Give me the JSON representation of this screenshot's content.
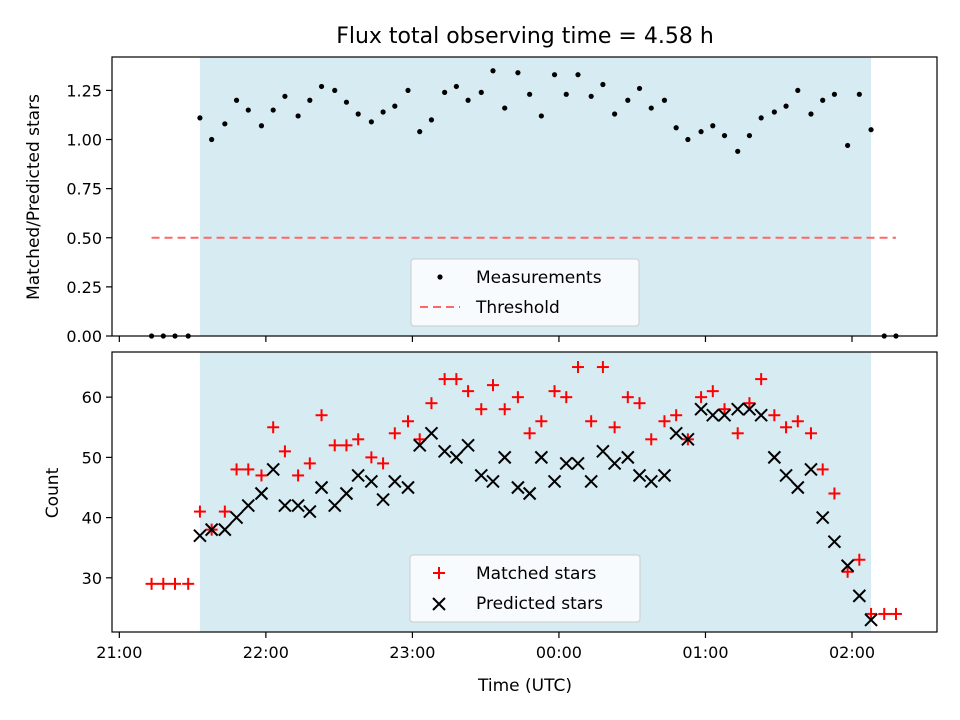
{
  "chart_data": [
    {
      "type": "scatter",
      "title": "Flux total observing time = 4.58 h",
      "xlabel": "",
      "ylabel": "Matched/Predicted stars",
      "ylim": [
        0,
        1.42
      ],
      "yticks": [
        "0.00",
        "0.25",
        "0.50",
        "0.75",
        "1.00",
        "1.25"
      ],
      "ytick_values": [
        0,
        0.25,
        0.5,
        0.75,
        1.0,
        1.25
      ],
      "x_unit": "hours since 21:00 UTC",
      "xlim": [
        -0.05,
        5.58
      ],
      "shaded_span": [
        0.55,
        5.13
      ],
      "shade_color": "#add8e6",
      "legend_position": "lower-center",
      "series": [
        {
          "name": "Measurements",
          "marker": "dot",
          "color": "#000000",
          "x": [
            0.22,
            0.3,
            0.38,
            0.47,
            0.55,
            0.63,
            0.72,
            0.8,
            0.88,
            0.97,
            1.05,
            1.13,
            1.22,
            1.3,
            1.38,
            1.47,
            1.55,
            1.63,
            1.72,
            1.8,
            1.88,
            1.97,
            2.05,
            2.13,
            2.22,
            2.3,
            2.38,
            2.47,
            2.55,
            2.63,
            2.72,
            2.8,
            2.88,
            2.97,
            3.05,
            3.13,
            3.22,
            3.3,
            3.38,
            3.47,
            3.55,
            3.63,
            3.72,
            3.8,
            3.88,
            3.97,
            4.05,
            4.13,
            4.22,
            4.3,
            4.38,
            4.47,
            4.55,
            4.63,
            4.72,
            4.8,
            4.88,
            4.97,
            5.05,
            5.13,
            5.22,
            5.3
          ],
          "y": [
            0,
            0,
            0,
            0,
            1.11,
            1.0,
            1.08,
            1.2,
            1.15,
            1.07,
            1.15,
            1.22,
            1.12,
            1.2,
            1.27,
            1.25,
            1.19,
            1.13,
            1.09,
            1.14,
            1.17,
            1.25,
            1.04,
            1.1,
            1.24,
            1.27,
            1.2,
            1.24,
            1.35,
            1.16,
            1.34,
            1.23,
            1.12,
            1.33,
            1.23,
            1.33,
            1.22,
            1.28,
            1.13,
            1.2,
            1.26,
            1.16,
            1.2,
            1.06,
            1.0,
            1.04,
            1.07,
            1.02,
            0.94,
            1.02,
            1.11,
            1.14,
            1.17,
            1.25,
            1.13,
            1.2,
            1.23,
            0.97,
            1.23,
            1.05,
            0,
            0
          ]
        },
        {
          "name": "Threshold",
          "marker": "dashed-line",
          "color": "#ff6666",
          "x": [
            0.22,
            5.3
          ],
          "y": [
            0.5,
            0.5
          ]
        }
      ]
    },
    {
      "type": "scatter",
      "title": "",
      "xlabel": "Time (UTC)",
      "ylabel": "Count",
      "ylim": [
        21,
        67.5
      ],
      "yticks": [
        "30",
        "40",
        "50",
        "60"
      ],
      "ytick_values": [
        30,
        40,
        50,
        60
      ],
      "x_unit": "hours since 21:00 UTC",
      "xlim": [
        -0.05,
        5.58
      ],
      "xticks": [
        "21:00",
        "22:00",
        "23:00",
        "00:00",
        "01:00",
        "02:00"
      ],
      "xtick_values": [
        0,
        1,
        2,
        3,
        4,
        5
      ],
      "shaded_span": [
        0.55,
        5.13
      ],
      "shade_color": "#add8e6",
      "legend_position": "lower-center",
      "series": [
        {
          "name": "Matched stars",
          "marker": "plus",
          "color": "#ff0000",
          "x": [
            0.22,
            0.3,
            0.38,
            0.47,
            0.55,
            0.63,
            0.72,
            0.8,
            0.88,
            0.97,
            1.05,
            1.13,
            1.22,
            1.3,
            1.38,
            1.47,
            1.55,
            1.63,
            1.72,
            1.8,
            1.88,
            1.97,
            2.05,
            2.13,
            2.22,
            2.3,
            2.38,
            2.47,
            2.55,
            2.63,
            2.72,
            2.8,
            2.88,
            2.97,
            3.05,
            3.13,
            3.22,
            3.3,
            3.38,
            3.47,
            3.55,
            3.63,
            3.72,
            3.8,
            3.88,
            3.97,
            4.05,
            4.13,
            4.22,
            4.3,
            4.38,
            4.47,
            4.55,
            4.63,
            4.72,
            4.8,
            4.88,
            4.97,
            5.05,
            5.13,
            5.22,
            5.3
          ],
          "y": [
            29,
            29,
            29,
            29,
            41,
            38,
            41,
            48,
            48,
            47,
            55,
            51,
            47,
            49,
            57,
            52,
            52,
            53,
            50,
            49,
            54,
            56,
            53,
            59,
            63,
            63,
            61,
            58,
            62,
            58,
            60,
            54,
            56,
            61,
            60,
            65,
            56,
            65,
            55,
            60,
            59,
            53,
            56,
            57,
            53,
            60,
            61,
            58,
            54,
            59,
            63,
            57,
            55,
            56,
            54,
            48,
            44,
            31,
            33,
            24,
            24,
            24
          ],
          "note_ignore": ""
        },
        {
          "name": "Predicted stars",
          "marker": "x",
          "color": "#000000",
          "x": [
            0.55,
            0.63,
            0.72,
            0.8,
            0.88,
            0.97,
            1.05,
            1.13,
            1.22,
            1.3,
            1.38,
            1.47,
            1.55,
            1.63,
            1.72,
            1.8,
            1.88,
            1.97,
            2.05,
            2.13,
            2.22,
            2.3,
            2.38,
            2.47,
            2.55,
            2.63,
            2.72,
            2.8,
            2.88,
            2.97,
            3.05,
            3.13,
            3.22,
            3.3,
            3.38,
            3.47,
            3.55,
            3.63,
            3.72,
            3.8,
            3.88,
            3.97,
            4.05,
            4.13,
            4.22,
            4.3,
            4.38,
            4.47,
            4.55,
            4.63,
            4.72,
            4.8,
            4.88,
            4.97,
            5.05,
            5.13
          ],
          "y": [
            37,
            38,
            38,
            40,
            42,
            44,
            48,
            42,
            42,
            41,
            45,
            42,
            44,
            47,
            46,
            43,
            46,
            45,
            52,
            54,
            51,
            50,
            52,
            47,
            46,
            50,
            45,
            44,
            50,
            46,
            49,
            49,
            46,
            51,
            49,
            50,
            47,
            46,
            47,
            54,
            53,
            58,
            57,
            57,
            58,
            58,
            57,
            50,
            47,
            45,
            48,
            40,
            36,
            32,
            27,
            23
          ]
        }
      ]
    }
  ]
}
